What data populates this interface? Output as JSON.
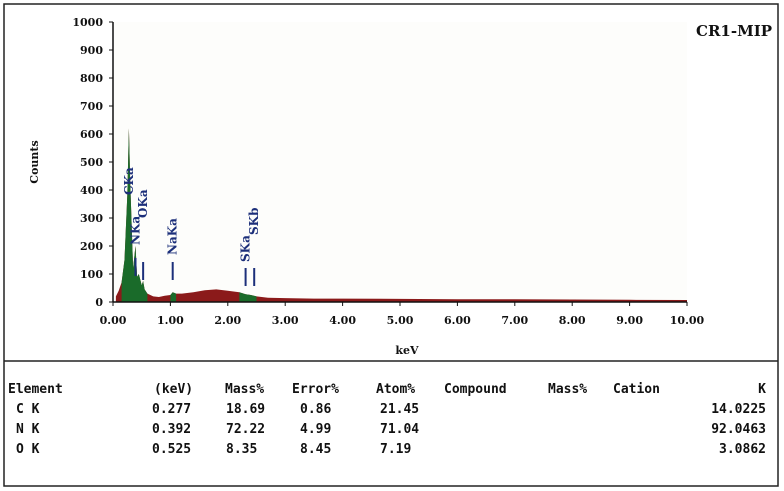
{
  "chart_data": {
    "type": "area",
    "title": "CR1-MIP",
    "xlabel": "keV",
    "ylabel": "Counts",
    "xlim": [
      0,
      10
    ],
    "ylim": [
      0,
      1000
    ],
    "xticks": [
      "0.00",
      "1.00",
      "2.00",
      "3.00",
      "4.00",
      "5.00",
      "6.00",
      "7.00",
      "8.00",
      "9.00",
      "10.00"
    ],
    "yticks": [
      "0",
      "100",
      "200",
      "300",
      "400",
      "500",
      "600",
      "700",
      "800",
      "900",
      "1000"
    ],
    "grid": false,
    "colors": {
      "spectrum": "#8b1a1a",
      "peaks": "#1a6b2a",
      "labels": "#1c2f7a",
      "background": "#fdfdfb"
    },
    "series": [
      {
        "x": [
          0.05,
          0.1,
          0.15,
          0.2,
          0.25,
          0.277,
          0.3,
          0.35,
          0.392,
          0.42,
          0.45,
          0.5,
          0.525,
          0.55,
          0.6,
          0.7,
          0.8,
          0.9,
          1.0,
          1.04,
          1.1,
          1.2,
          1.4,
          1.6,
          1.8,
          2.0,
          2.2,
          2.31,
          2.4,
          2.5,
          2.7,
          3.0,
          3.5,
          4.0,
          5.0,
          6.0,
          7.0,
          8.0,
          9.0,
          10.0
        ],
        "values": [
          20,
          40,
          70,
          150,
          380,
          620,
          430,
          120,
          200,
          90,
          100,
          60,
          75,
          45,
          30,
          20,
          18,
          22,
          25,
          35,
          30,
          30,
          35,
          42,
          45,
          40,
          35,
          28,
          25,
          20,
          15,
          14,
          12,
          12,
          11,
          10,
          10,
          9,
          8,
          7
        ]
      }
    ],
    "peaks": [
      {
        "label": "CKa",
        "kev": 0.277
      },
      {
        "label": "NKa",
        "kev": 0.392
      },
      {
        "label": "OKa",
        "kev": 0.525
      },
      {
        "label": "NaKa",
        "kev": 1.04
      },
      {
        "label": "SKa",
        "kev": 2.31
      },
      {
        "label": "SKb",
        "kev": 2.46
      }
    ]
  },
  "table": {
    "headers": [
      "Element",
      "(keV)",
      "Mass%",
      "Error%",
      "Atom%",
      "Compound",
      "Mass%",
      "Cation",
      "K"
    ],
    "rows": [
      [
        "C K",
        "0.277",
        "18.69",
        "0.86",
        "21.45",
        "",
        "",
        "",
        "14.0225"
      ],
      [
        "N K",
        "0.392",
        "72.22",
        "4.99",
        "71.04",
        "",
        "",
        "",
        "92.0463"
      ],
      [
        "O K",
        "0.525",
        "8.35",
        "8.45",
        "7.19",
        "",
        "",
        "",
        "3.0862"
      ]
    ]
  }
}
